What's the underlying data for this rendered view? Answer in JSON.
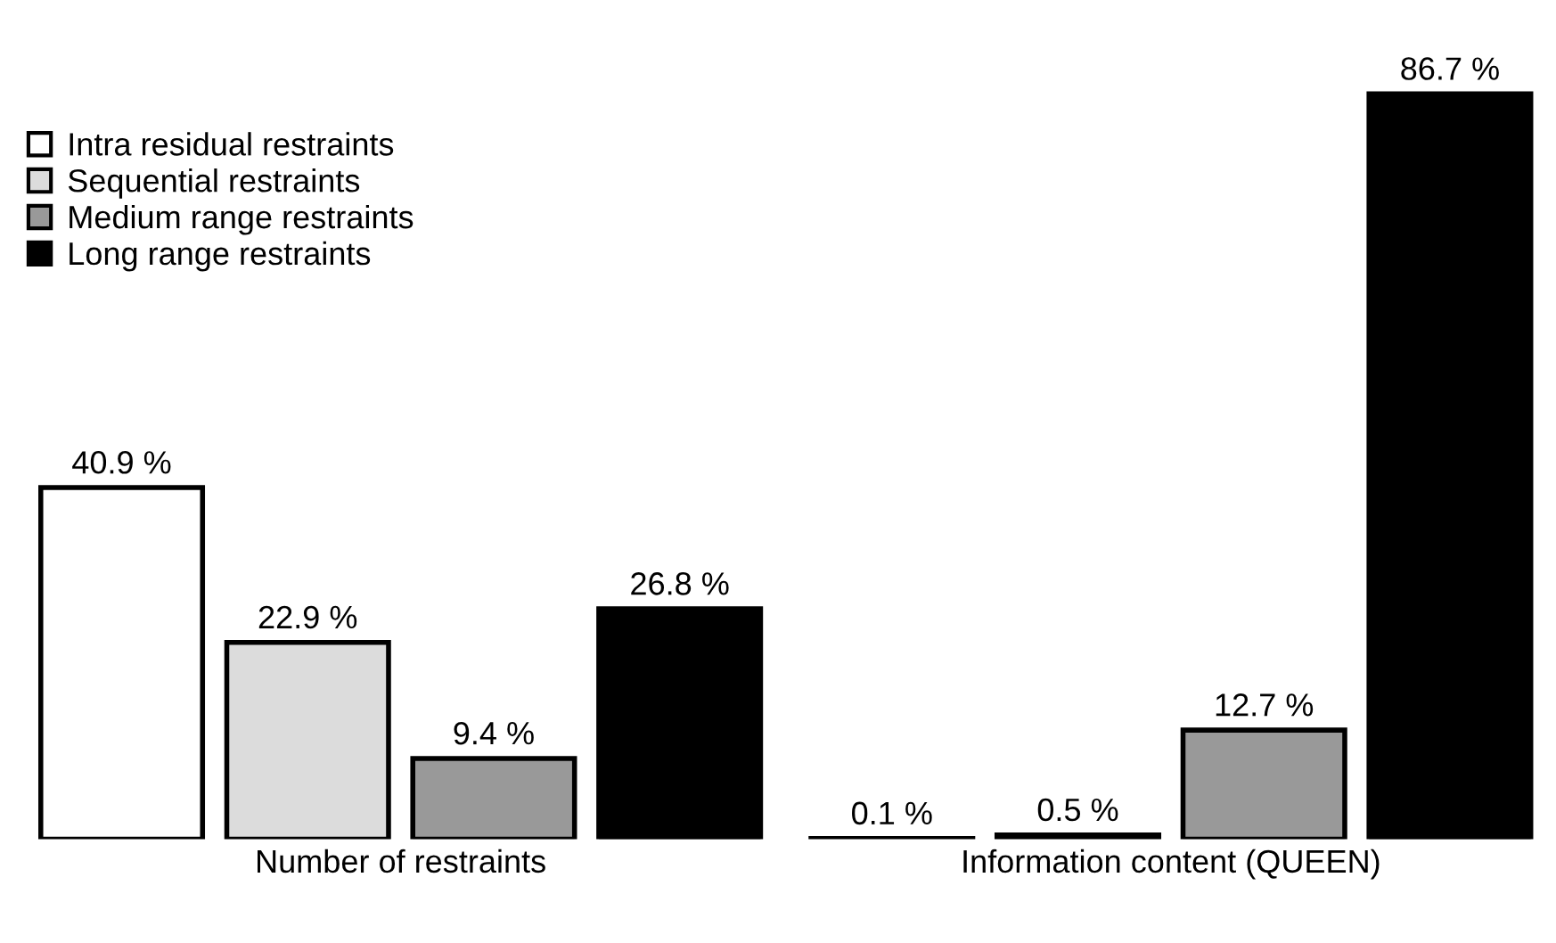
{
  "chart_data": {
    "type": "bar",
    "categories": [
      "Number of restraints",
      "Information content (QUEEN)"
    ],
    "series": [
      {
        "name": "Intra residual restraints",
        "color": "#ffffff",
        "values": [
          40.9,
          0.1
        ],
        "value_labels": [
          "40.9 %",
          "0.1 %"
        ]
      },
      {
        "name": "Sequential restraints",
        "color": "#dcdcdc",
        "values": [
          22.9,
          0.5
        ],
        "value_labels": [
          "22.9 %",
          "0.5 %"
        ]
      },
      {
        "name": "Medium range restraints",
        "color": "#999999",
        "values": [
          9.4,
          12.7
        ],
        "value_labels": [
          "9.4 %",
          "12.7 %"
        ]
      },
      {
        "name": "Long range restraints",
        "color": "#000000",
        "values": [
          26.8,
          86.7
        ],
        "value_labels": [
          "26.8 %",
          "86.7 %"
        ]
      }
    ],
    "legend": "top left",
    "grid": false
  }
}
